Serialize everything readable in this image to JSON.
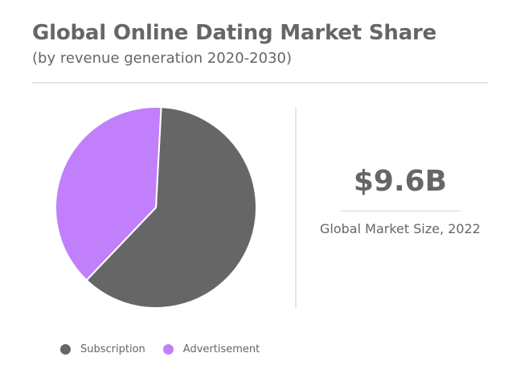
{
  "title": "Global Online Dating Market Share",
  "subtitle": "(by revenue generation 2020-2030)",
  "stat": {
    "value": "$9.6B",
    "label": "Global Market Size, 2022"
  },
  "chart_data": {
    "type": "pie",
    "title": "Global Online Dating Market Share",
    "subtitle": "(by revenue generation 2020-2030)",
    "legend_position": "bottom-left",
    "start_angle_deg": 3,
    "series": [
      {
        "name": "Subscription",
        "value": 61.3,
        "color": "#666666"
      },
      {
        "name": "Advertisement",
        "value": 38.7,
        "color": "#c17ffc"
      }
    ]
  }
}
